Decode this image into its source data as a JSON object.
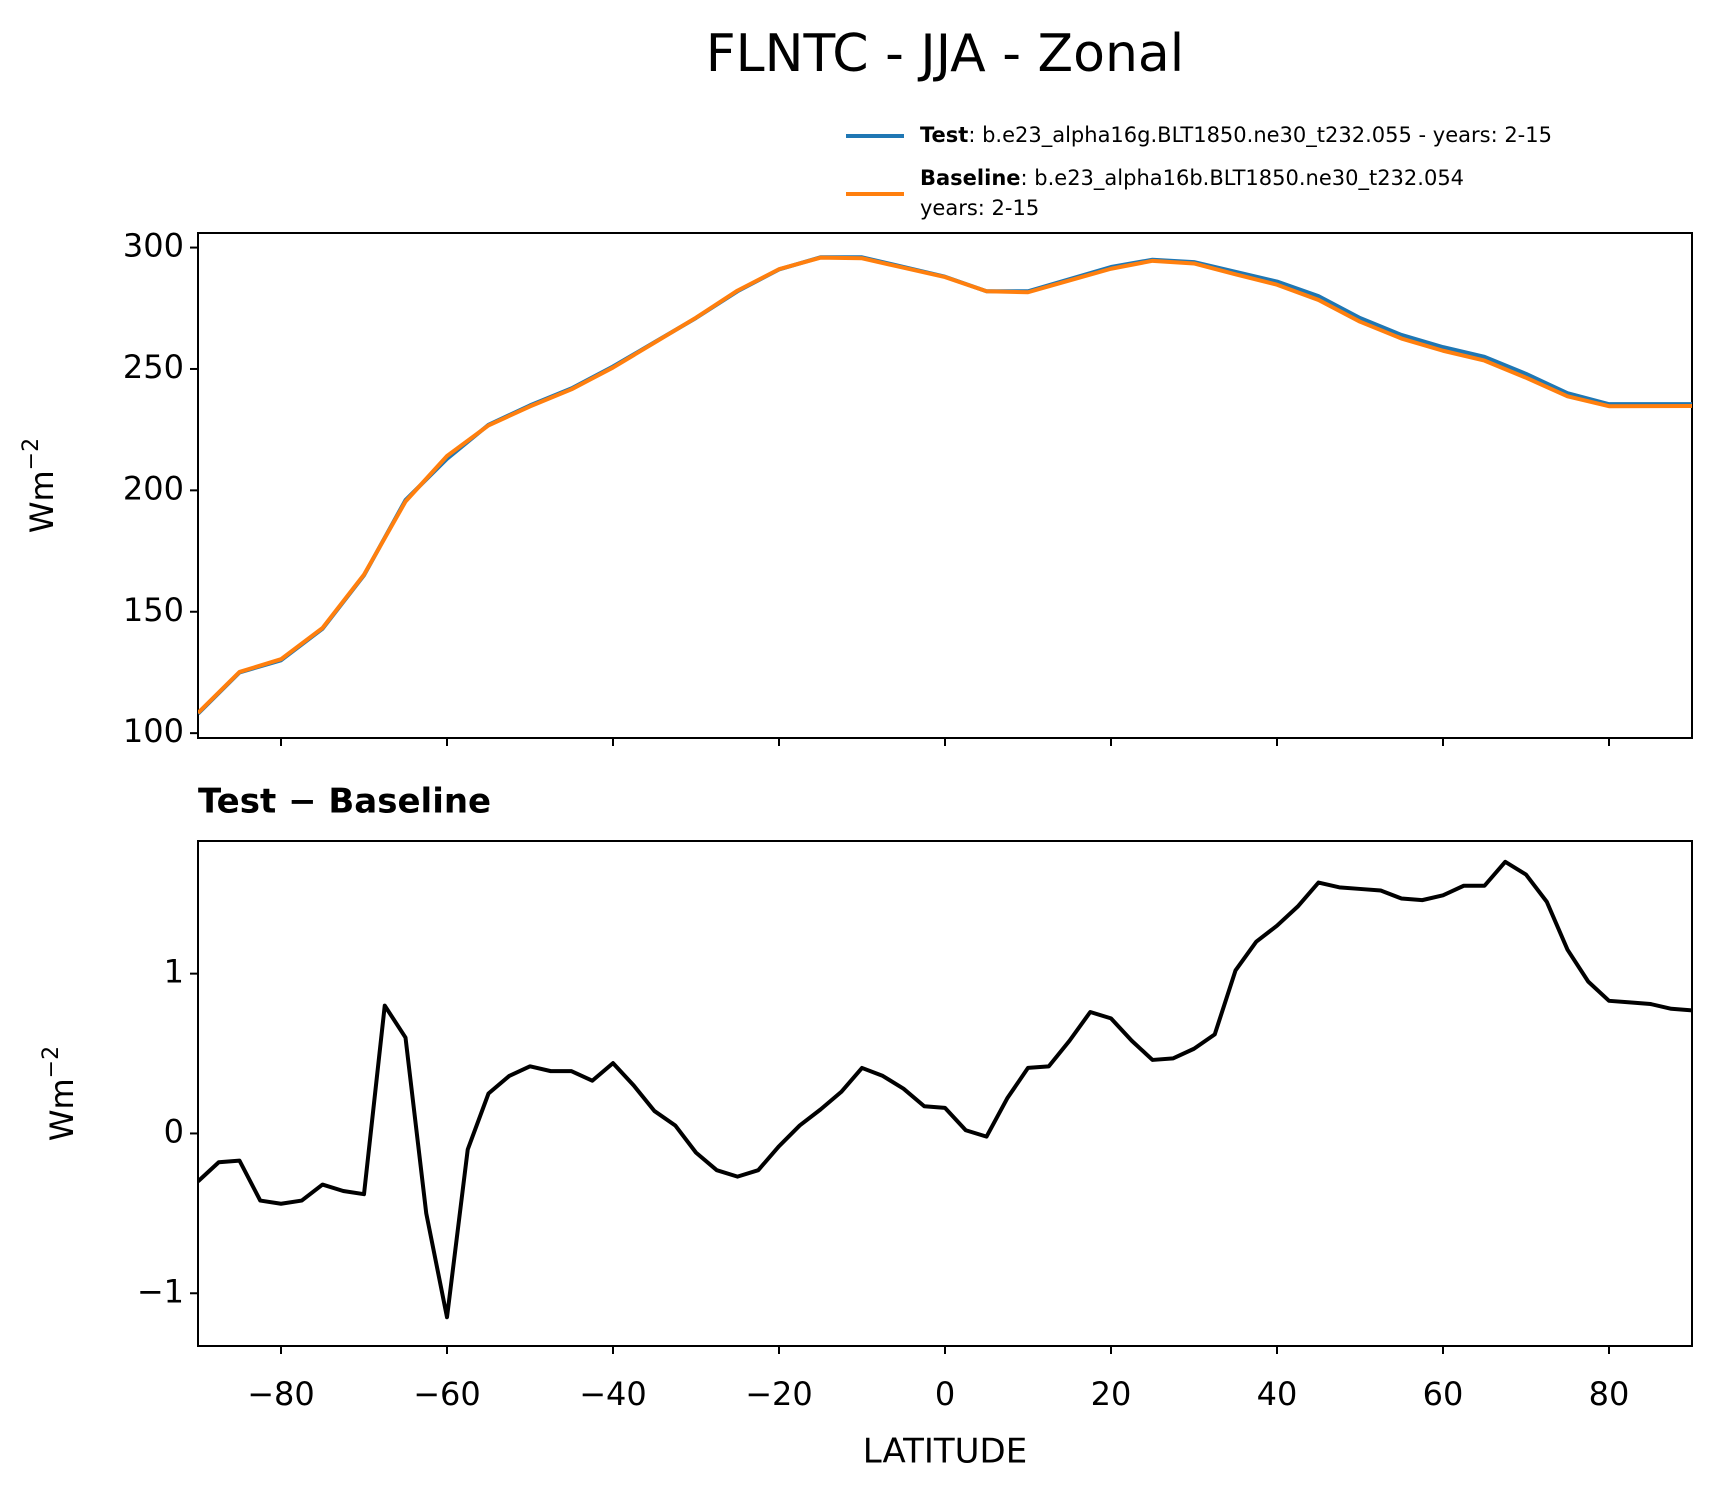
{
  "title": "FLNTC - JJA - Zonal",
  "chart_data": [
    {
      "type": "line",
      "ylabel": {
        "text": "Wm",
        "superscript": "−2"
      },
      "x": [
        -90,
        -85,
        -80,
        -75,
        -70,
        -65,
        -60,
        -55,
        -50,
        -45,
        -40,
        -35,
        -30,
        -25,
        -20,
        -15,
        -10,
        -5,
        0,
        5,
        10,
        15,
        20,
        25,
        30,
        35,
        40,
        45,
        50,
        55,
        60,
        65,
        70,
        75,
        80,
        85,
        90
      ],
      "series": [
        {
          "name": "Test",
          "description": [
            ": b.e23_alpha16g.BLT1850.ne30_t232.055 - years: 2-15"
          ],
          "color": "#1f77b4",
          "values": [
            108,
            125,
            130,
            143,
            165,
            196,
            213,
            227,
            235,
            242,
            251,
            261,
            271,
            282,
            291,
            296,
            296,
            292,
            288,
            282,
            282,
            287,
            292,
            295,
            294,
            290,
            286,
            280,
            271,
            264,
            259,
            255,
            248,
            240,
            235.5,
            235.5,
            235.5
          ]
        },
        {
          "name": "Baseline",
          "description": [
            ": b.e23_alpha16b.BLT1850.ne30_t232.054",
            "years: 2-15"
          ],
          "color": "#ff7f0e",
          "values": [
            108.3,
            125.2,
            130.45,
            143.32,
            165.3,
            195.4,
            214.15,
            226.75,
            234.58,
            241.62,
            250.58,
            260.85,
            271.12,
            282.27,
            291.08,
            295.85,
            295.6,
            291.7,
            287.85,
            282.02,
            281.6,
            286.45,
            291.28,
            294.54,
            293.45,
            289,
            284.7,
            278.43,
            269.48,
            262.54,
            257.5,
            253.45,
            246.4,
            238.75,
            234.65,
            234.7,
            234.73
          ]
        }
      ],
      "ylim": [
        98,
        306
      ],
      "yticks": [
        100,
        150,
        200,
        250,
        300
      ]
    },
    {
      "type": "line",
      "title": "Test − Baseline",
      "xlabel": "LATITUDE",
      "ylabel": {
        "text": "Wm",
        "superscript": "−2"
      },
      "x": [
        -90,
        -87.5,
        -85,
        -82.5,
        -80,
        -77.5,
        -75,
        -72.5,
        -70,
        -67.5,
        -65,
        -62.5,
        -60,
        -57.5,
        -55,
        -52.5,
        -50,
        -47.5,
        -45,
        -42.5,
        -40,
        -37.5,
        -35,
        -32.5,
        -30,
        -27.5,
        -25,
        -22.5,
        -20,
        -17.5,
        -15,
        -12.5,
        -10,
        -7.5,
        -5,
        -2.5,
        0,
        2.5,
        5,
        7.5,
        10,
        12.5,
        15,
        17.5,
        20,
        22.5,
        25,
        27.5,
        30,
        32.5,
        35,
        37.5,
        40,
        42.5,
        45,
        47.5,
        50,
        52.5,
        55,
        57.5,
        60,
        62.5,
        65,
        67.5,
        70,
        72.5,
        75,
        77.5,
        80,
        82.5,
        85,
        87.5,
        90
      ],
      "series": [
        {
          "color": "#000000",
          "values": [
            -0.3,
            -0.18,
            -0.17,
            -0.42,
            -0.44,
            -0.42,
            -0.32,
            -0.36,
            -0.38,
            0.8,
            0.6,
            -0.5,
            -1.15,
            -0.1,
            0.25,
            0.36,
            0.42,
            0.39,
            0.39,
            0.33,
            0.44,
            0.3,
            0.14,
            0.05,
            -0.12,
            -0.23,
            -0.27,
            -0.23,
            -0.08,
            0.05,
            0.15,
            0.26,
            0.41,
            0.36,
            0.28,
            0.17,
            0.16,
            0.02,
            -0.02,
            0.22,
            0.41,
            0.42,
            0.58,
            0.76,
            0.72,
            0.58,
            0.46,
            0.47,
            0.53,
            0.62,
            1.02,
            1.2,
            1.3,
            1.42,
            1.57,
            1.54,
            1.53,
            1.52,
            1.47,
            1.46,
            1.49,
            1.55,
            1.55,
            1.7,
            1.62,
            1.45,
            1.15,
            0.95,
            0.83,
            0.82,
            0.81,
            0.78,
            0.77
          ]
        }
      ],
      "xlim": [
        -90,
        90
      ],
      "xticks": [
        {
          "value": -80,
          "label": "−80"
        },
        {
          "value": -60,
          "label": "−60"
        },
        {
          "value": -40,
          "label": "−40"
        },
        {
          "value": -20,
          "label": "−20"
        },
        0,
        20,
        40,
        60,
        80
      ],
      "ylim": [
        -1.33,
        1.83
      ],
      "yticks": [
        {
          "value": -1,
          "label": "−1"
        },
        0,
        1
      ]
    }
  ]
}
